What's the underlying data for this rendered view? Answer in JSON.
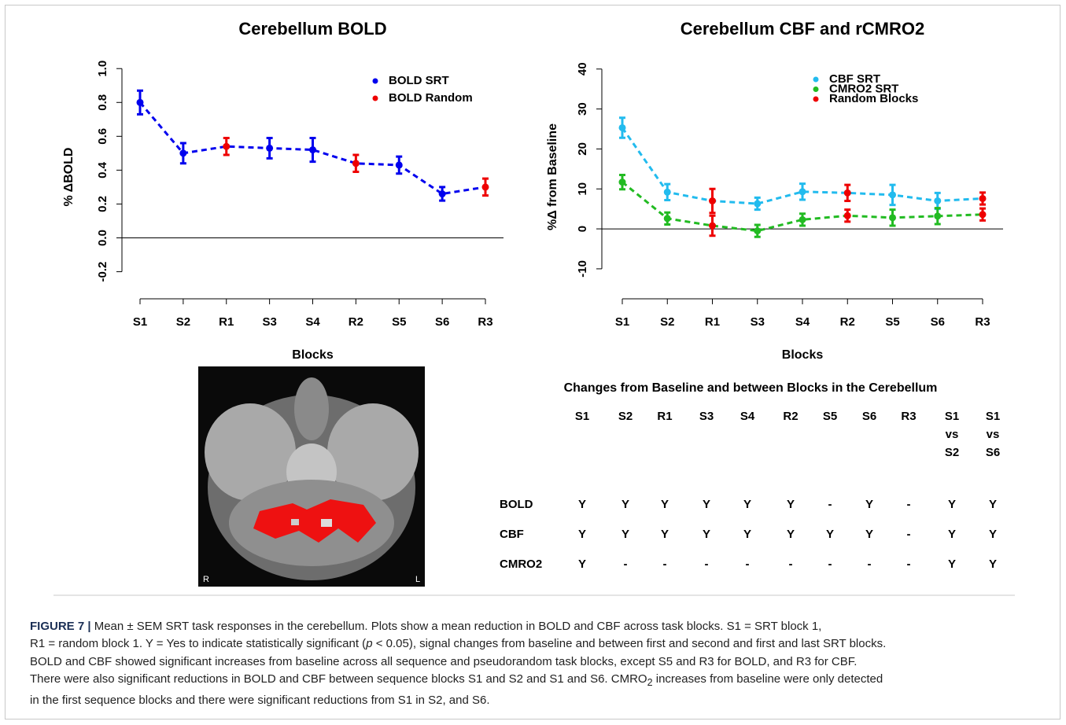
{
  "chart_data": [
    {
      "type": "line",
      "title": "Cerebellum BOLD",
      "xlabel": "Blocks",
      "ylabel": "% ΔBOLD",
      "categories": [
        "S1",
        "S2",
        "R1",
        "S3",
        "S4",
        "R2",
        "S5",
        "S6",
        "R3"
      ],
      "ylim": [
        -0.36,
        1.08
      ],
      "yticks": [
        -0.2,
        {
          "value": 0,
          "label": "0.0"
        },
        0.2,
        0.4,
        0.6,
        0.8,
        {
          "value": 1,
          "label": "1.0"
        }
      ],
      "reference_line": 0,
      "legend": "top-right",
      "series": [
        {
          "name": "BOLD SRT",
          "color": "#0000ee",
          "values": [
            0.8,
            0.5,
            null,
            0.53,
            0.52,
            null,
            0.43,
            0.26,
            null
          ],
          "errors": [
            0.07,
            0.06,
            null,
            0.06,
            0.07,
            null,
            0.05,
            0.04,
            null
          ]
        },
        {
          "name": "BOLD Random",
          "color": "#ee0000",
          "values": [
            null,
            null,
            [
              0.54
            ],
            null,
            null,
            [
              0.44
            ],
            null,
            null,
            [
              0.3
            ]
          ],
          "errors": [
            null,
            null,
            [
              0.05
            ],
            null,
            null,
            [
              0.05
            ],
            null,
            null,
            [
              0.05
            ]
          ]
        }
      ]
    },
    {
      "type": "line",
      "title": "Cerebellum CBF and rCMRO2",
      "xlabel": "Blocks",
      "ylabel": "%Δ from Baseline",
      "categories": [
        "S1",
        "S2",
        "R1",
        "S3",
        "S4",
        "R2",
        "S5",
        "S6",
        "R3"
      ],
      "ylim": [
        -17.5,
        43.5
      ],
      "yticks": [
        -10,
        0,
        10,
        20,
        30,
        40
      ],
      "reference_line": 0,
      "legend": "top-right",
      "series": [
        {
          "name": "CBF SRT",
          "color": "#22bbee",
          "values": [
            25.3,
            9.2,
            null,
            6.3,
            9.3,
            null,
            8.5,
            7.0,
            null
          ],
          "errors": [
            2.5,
            2.0,
            null,
            1.5,
            2.0,
            null,
            2.5,
            2.0,
            null
          ]
        },
        {
          "name": "CMRO2 SRT",
          "color": "#22bb22",
          "values": [
            11.7,
            2.6,
            null,
            -0.5,
            2.3,
            null,
            2.8,
            3.2,
            null
          ],
          "errors": [
            1.8,
            1.5,
            null,
            1.5,
            1.5,
            null,
            2.0,
            2.0,
            null
          ]
        },
        {
          "name": "Random Blocks",
          "color": "#ee0000",
          "values": [
            null,
            null,
            [
              7.0,
              0.8
            ],
            null,
            null,
            [
              9.0,
              3.3
            ],
            null,
            null,
            [
              7.6,
              3.6
            ]
          ],
          "errors": [
            null,
            null,
            [
              3.0,
              2.5
            ],
            null,
            null,
            [
              2.0,
              1.5
            ],
            null,
            null,
            [
              1.5,
              1.5
            ]
          ]
        }
      ]
    }
  ],
  "image": {
    "labels": [
      "R",
      "L"
    ]
  },
  "table": {
    "title": "Changes from Baseline and between Blocks in the Cerebellum",
    "headers": [
      "S1",
      "S2",
      "R1",
      "S3",
      "S4",
      "R2",
      "S5",
      "S6",
      "R3",
      [
        "S1",
        "vs",
        "S2"
      ],
      [
        "S1",
        "vs",
        "S6"
      ]
    ],
    "rows": [
      {
        "label": "BOLD",
        "cells": [
          "Y",
          "Y",
          "Y",
          "Y",
          "Y",
          "Y",
          "-",
          "Y",
          "-",
          "Y",
          "Y"
        ]
      },
      {
        "label": "CBF",
        "cells": [
          "Y",
          "Y",
          "Y",
          "Y",
          "Y",
          "Y",
          "Y",
          "Y",
          "-",
          "Y",
          "Y"
        ]
      },
      {
        "label": "CMRO2",
        "cells": [
          "Y",
          "-",
          "-",
          "-",
          "-",
          "-",
          "-",
          "-",
          "-",
          "Y",
          "Y"
        ]
      }
    ]
  },
  "caption": {
    "segments": [
      "FIGURE 7 |",
      " Mean ± SEM SRT task responses in the cerebellum. Plots show a mean reduction in BOLD and CBF across task blocks. S1 = SRT block 1,",
      "R1 = random block 1. Y = Yes to indicate statistically significant (",
      "p",
      " < 0.05), signal changes from baseline and between first and second and first and last SRT blocks.",
      "BOLD and CBF showed significant increases from baseline across all sequence and pseudorandom task blocks, except S5 and R3 for BOLD, and R3 for CBF.",
      "There were also significant reductions in BOLD and CBF between sequence blocks S1 and S2 and S1 and S6. CMRO",
      "2",
      " increases from baseline were only detected",
      "in the first sequence blocks and there were significant reductions from S1 in S2, and S6."
    ]
  }
}
